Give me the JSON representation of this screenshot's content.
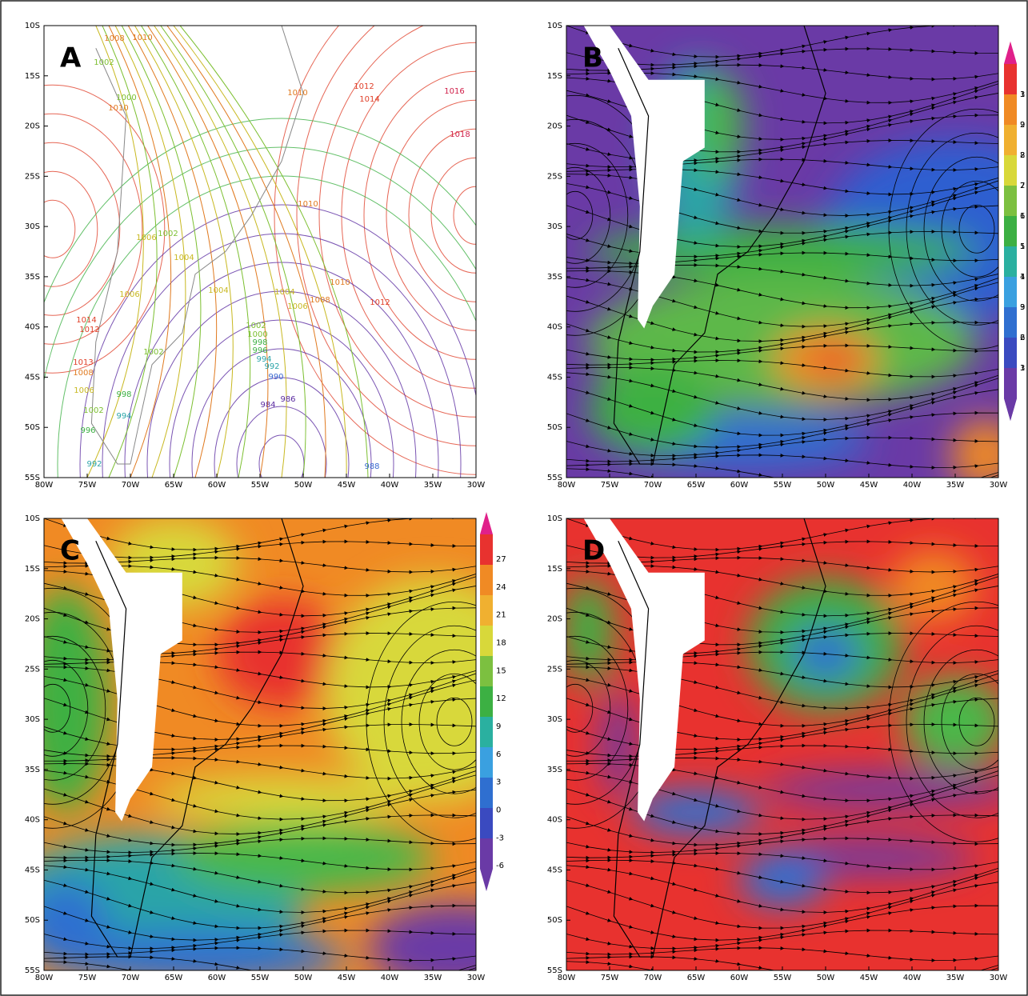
{
  "panels": [
    {
      "label": "A",
      "x_labels": [
        "80W",
        "75W",
        "70W",
        "65W",
        "60W",
        "55W",
        "50W",
        "45W",
        "40W",
        "35W",
        "30W"
      ],
      "y_labels": [
        "10S",
        "15S",
        "20S",
        "25S",
        "30S",
        "35S",
        "40S",
        "45S",
        "50S",
        "55S"
      ],
      "contour_labels": [
        "1008",
        "1010",
        "1002",
        "1000",
        "1010",
        "1010",
        "1012",
        "1014",
        "1016",
        "1018",
        "1010",
        "1006",
        "1002",
        "1004",
        "1006",
        "1004",
        "1004",
        "1010",
        "1008",
        "1006",
        "1012",
        "1014",
        "1012",
        "1002",
        "1000",
        "998",
        "996",
        "994",
        "992",
        "1002",
        "1013",
        "1008",
        "990",
        "1006",
        "998",
        "986",
        "984",
        "1002",
        "994",
        "996",
        "988",
        "992"
      ]
    },
    {
      "label": "B",
      "x_labels": [
        "80W",
        "75W",
        "70W",
        "65W",
        "60W",
        "55W",
        "50W",
        "45W",
        "40W",
        "35W",
        "30W"
      ],
      "y_labels": [
        "10S",
        "15S",
        "20S",
        "25S",
        "30S",
        "35S",
        "40S",
        "45S",
        "50S",
        "55S"
      ],
      "colorbar_labels": [
        "3",
        "2",
        "2",
        "2",
        "1",
        "1",
        "1",
        "9",
        "6",
        "3"
      ]
    },
    {
      "label": "C",
      "x_labels": [
        "80W",
        "75W",
        "70W",
        "65W",
        "60W",
        "55W",
        "50W",
        "45W",
        "40W",
        "35W",
        "30W"
      ],
      "y_labels": [
        "10S",
        "15S",
        "20S",
        "25S",
        "30S",
        "35S",
        "40S",
        "45S",
        "50S",
        "55S"
      ],
      "colorbar_labels": [
        "27",
        "24",
        "21",
        "18",
        "15",
        "12",
        "9",
        "6",
        "3",
        "0",
        "-3",
        "-6"
      ]
    },
    {
      "label": "D",
      "x_labels": [
        "80W",
        "75W",
        "70W",
        "65W",
        "60W",
        "55W",
        "50W",
        "45W",
        "40W",
        "35W",
        "30W"
      ],
      "y_labels": [
        "10S",
        "15S",
        "20S",
        "25S",
        "30S",
        "35S",
        "40S",
        "45S",
        "50S",
        "55S"
      ],
      "colorbar_labels": [
        "1",
        "9",
        "8",
        "7",
        "6",
        "5",
        "4",
        "3",
        "2",
        "1"
      ]
    }
  ]
}
